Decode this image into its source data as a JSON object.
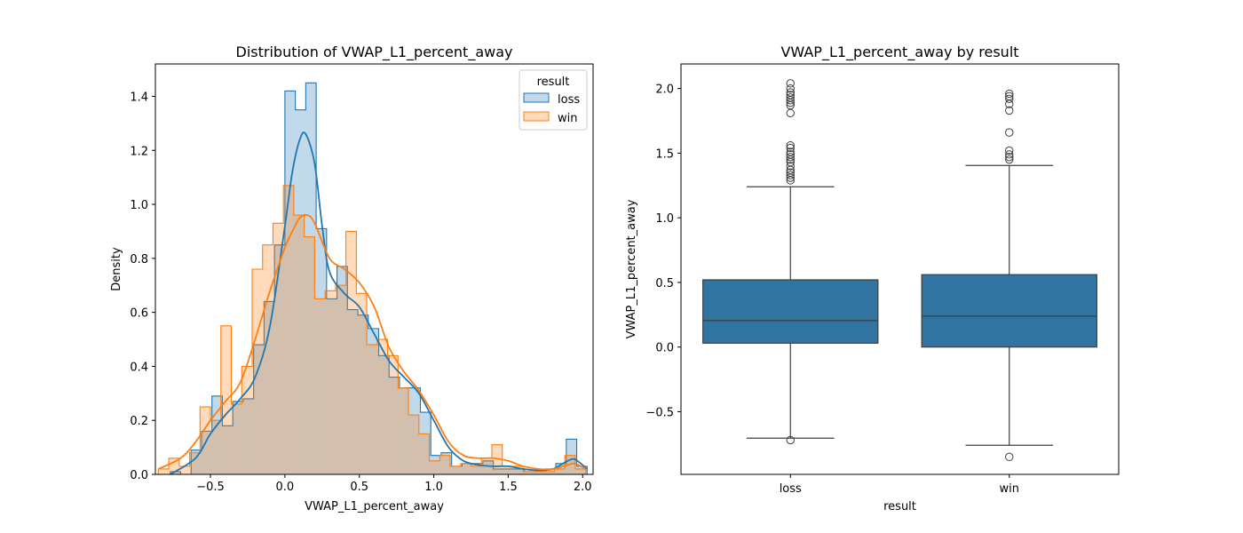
{
  "chart_data": [
    {
      "type": "histogram",
      "title": "Distribution of VWAP_L1_percent_away",
      "xlabel": "VWAP_L1_percent_away",
      "ylabel": "Density",
      "xlim": [
        -0.87,
        2.07
      ],
      "ylim": [
        0,
        1.52
      ],
      "xticks": [
        -0.5,
        0.0,
        0.5,
        1.0,
        1.5,
        2.0
      ],
      "xtick_labels": [
        "−0.5",
        "0.0",
        "0.5",
        "1.0",
        "1.5",
        "2.0"
      ],
      "yticks": [
        0.0,
        0.2,
        0.4,
        0.6,
        0.8,
        1.0,
        1.2,
        1.4
      ],
      "ytick_labels": [
        "0.0",
        "0.2",
        "0.4",
        "0.6",
        "0.8",
        "1.0",
        "1.2",
        "1.4"
      ],
      "legend": {
        "title": "result",
        "position": "upper right"
      },
      "series": [
        {
          "name": "loss",
          "color": "#1f77b4",
          "bin_edges": [
            -0.77,
            -0.7,
            -0.63,
            -0.56,
            -0.49,
            -0.42,
            -0.35,
            -0.28,
            -0.21,
            -0.14,
            -0.07,
            0.0,
            0.07,
            0.14,
            0.21,
            0.28,
            0.35,
            0.42,
            0.49,
            0.56,
            0.63,
            0.7,
            0.77,
            0.84,
            0.91,
            0.98,
            1.05,
            1.12,
            1.19,
            1.26,
            1.33,
            1.4,
            1.47,
            1.54,
            1.61,
            1.68,
            1.75,
            1.82,
            1.89,
            1.96,
            2.03
          ],
          "density": [
            0.01,
            0.0,
            0.09,
            0.16,
            0.29,
            0.18,
            0.27,
            0.28,
            0.48,
            0.64,
            0.85,
            1.42,
            1.35,
            1.45,
            0.91,
            0.65,
            0.77,
            0.61,
            0.59,
            0.54,
            0.44,
            0.36,
            0.32,
            0.32,
            0.23,
            0.07,
            0.08,
            0.03,
            0.04,
            0.04,
            0.05,
            0.02,
            0.02,
            0.02,
            0.01,
            0.01,
            0.02,
            0.04,
            0.13,
            0.03
          ],
          "kde_x": [
            -0.77,
            -0.6,
            -0.5,
            -0.4,
            -0.3,
            -0.2,
            -0.1,
            0.0,
            0.05,
            0.1,
            0.14,
            0.2,
            0.25,
            0.3,
            0.4,
            0.5,
            0.6,
            0.7,
            0.8,
            0.9,
            1.0,
            1.1,
            1.2,
            1.3,
            1.4,
            1.5,
            1.6,
            1.7,
            1.8,
            1.9,
            1.95,
            2.03
          ],
          "kde_y": [
            0.0,
            0.06,
            0.15,
            0.22,
            0.28,
            0.36,
            0.55,
            0.92,
            1.12,
            1.24,
            1.26,
            1.15,
            0.92,
            0.75,
            0.67,
            0.62,
            0.52,
            0.42,
            0.36,
            0.3,
            0.2,
            0.1,
            0.05,
            0.035,
            0.03,
            0.03,
            0.02,
            0.015,
            0.02,
            0.05,
            0.055,
            0.02
          ]
        },
        {
          "name": "win",
          "color": "#ff7f0e",
          "bin_edges": [
            -0.85,
            -0.78,
            -0.71,
            -0.64,
            -0.57,
            -0.5,
            -0.43,
            -0.36,
            -0.29,
            -0.22,
            -0.15,
            -0.08,
            -0.01,
            0.06,
            0.13,
            0.2,
            0.27,
            0.34,
            0.41,
            0.48,
            0.55,
            0.62,
            0.69,
            0.76,
            0.83,
            0.9,
            0.97,
            1.04,
            1.11,
            1.18,
            1.25,
            1.32,
            1.39,
            1.46,
            1.53,
            1.6,
            1.67,
            1.74,
            1.81,
            1.88,
            1.95,
            2.02
          ],
          "density": [
            0.02,
            0.06,
            0.03,
            0.08,
            0.25,
            0.2,
            0.55,
            0.26,
            0.4,
            0.76,
            0.85,
            0.93,
            1.07,
            0.96,
            0.88,
            0.65,
            0.68,
            0.7,
            0.9,
            0.67,
            0.48,
            0.5,
            0.44,
            0.32,
            0.22,
            0.15,
            0.05,
            0.07,
            0.03,
            0.04,
            0.03,
            0.06,
            0.11,
            0.03,
            0.03,
            0.01,
            0.01,
            0.01,
            0.02,
            0.07,
            0.02
          ],
          "kde_x": [
            -0.85,
            -0.7,
            -0.6,
            -0.5,
            -0.4,
            -0.3,
            -0.2,
            -0.1,
            0.0,
            0.05,
            0.1,
            0.15,
            0.2,
            0.3,
            0.4,
            0.5,
            0.6,
            0.7,
            0.8,
            0.9,
            1.0,
            1.1,
            1.2,
            1.3,
            1.4,
            1.5,
            1.6,
            1.7,
            1.8,
            1.9,
            1.95,
            2.02
          ],
          "kde_y": [
            0.02,
            0.06,
            0.12,
            0.2,
            0.27,
            0.34,
            0.5,
            0.68,
            0.84,
            0.9,
            0.95,
            0.96,
            0.93,
            0.8,
            0.76,
            0.71,
            0.62,
            0.47,
            0.38,
            0.31,
            0.22,
            0.12,
            0.07,
            0.06,
            0.06,
            0.05,
            0.03,
            0.02,
            0.02,
            0.035,
            0.04,
            0.02
          ]
        }
      ]
    },
    {
      "type": "box",
      "title": "VWAP_L1_percent_away by result",
      "xlabel": "result",
      "ylabel": "VWAP_L1_percent_away",
      "ylim": [
        -0.985,
        2.19
      ],
      "yticks": [
        -0.5,
        0.0,
        0.5,
        1.0,
        1.5,
        2.0
      ],
      "ytick_labels": [
        "−0.5",
        "0.0",
        "0.5",
        "1.0",
        "1.5",
        "2.0"
      ],
      "categories": [
        "loss",
        "win"
      ],
      "color": "#3274a1",
      "boxes": [
        {
          "category": "loss",
          "q1": 0.03,
          "median": 0.205,
          "q3": 0.52,
          "whisker_low": -0.705,
          "whisker_high": 1.24,
          "outliers": [
            -0.72,
            1.29,
            1.31,
            1.33,
            1.35,
            1.37,
            1.4,
            1.43,
            1.45,
            1.47,
            1.49,
            1.51,
            1.54,
            1.56,
            1.81,
            1.87,
            1.89,
            1.91,
            1.93,
            1.95,
            1.97,
            2.0,
            2.04
          ]
        },
        {
          "category": "win",
          "q1": 0.0,
          "median": 0.24,
          "q3": 0.56,
          "whisker_low": -0.76,
          "whisker_high": 1.405,
          "outliers": [
            -0.85,
            1.45,
            1.47,
            1.49,
            1.52,
            1.66,
            1.83,
            1.88,
            1.92,
            1.94,
            1.96
          ]
        }
      ]
    }
  ]
}
